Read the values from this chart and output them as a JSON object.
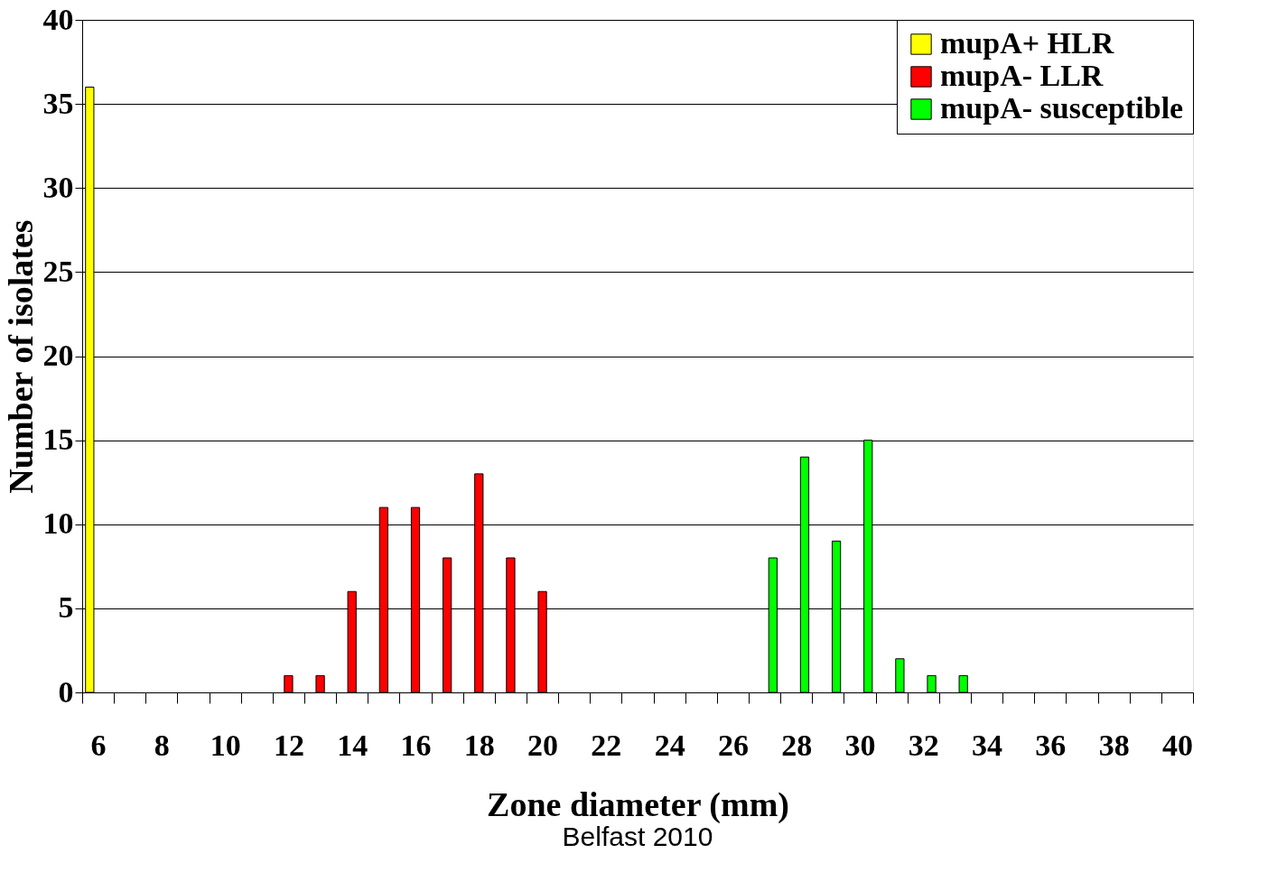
{
  "chart_data": {
    "type": "bar",
    "xlabel": "Zone diameter (mm)",
    "ylabel": "Number of isolates",
    "categories": [
      "6",
      null,
      "8",
      null,
      "10",
      null,
      "12",
      null,
      "14",
      null,
      "16",
      null,
      "18",
      null,
      "20",
      null,
      "22",
      null,
      "24",
      null,
      "26",
      null,
      "28",
      null,
      "30",
      null,
      "32",
      null,
      "34",
      null,
      "36",
      null,
      "38",
      null,
      "40"
    ],
    "series": [
      {
        "name": "mupA+ HLR",
        "color": "#ffff00",
        "values": [
          36,
          null,
          null,
          null,
          null,
          null,
          null,
          null,
          null,
          null,
          null,
          null,
          null,
          null,
          null,
          null,
          null,
          null,
          null,
          null,
          null,
          null,
          null,
          null,
          null,
          null,
          null,
          null,
          null,
          null,
          null,
          null,
          null,
          null,
          null
        ]
      },
      {
        "name": "mupA- LLR",
        "color": "#ff0000",
        "values": [
          null,
          null,
          null,
          null,
          null,
          null,
          1,
          1,
          6,
          11,
          11,
          8,
          13,
          8,
          6,
          null,
          null,
          null,
          null,
          null,
          null,
          null,
          null,
          null,
          null,
          null,
          null,
          null,
          null,
          null,
          null,
          null,
          null,
          null,
          null
        ]
      },
      {
        "name": "mupA- susceptible",
        "color": "#00ff00",
        "values": [
          null,
          null,
          null,
          null,
          null,
          null,
          null,
          null,
          null,
          null,
          null,
          null,
          null,
          null,
          null,
          null,
          null,
          null,
          null,
          null,
          null,
          8,
          14,
          9,
          15,
          2,
          1,
          1,
          null,
          null,
          null,
          null,
          null,
          null,
          null
        ]
      }
    ],
    "ylim": [
      0,
      40
    ],
    "yticks": [
      0,
      5,
      10,
      15,
      20,
      25,
      30,
      35,
      40
    ],
    "grid": "y",
    "legend": "top right",
    "annotations": [
      "Belfast 2010"
    ]
  }
}
